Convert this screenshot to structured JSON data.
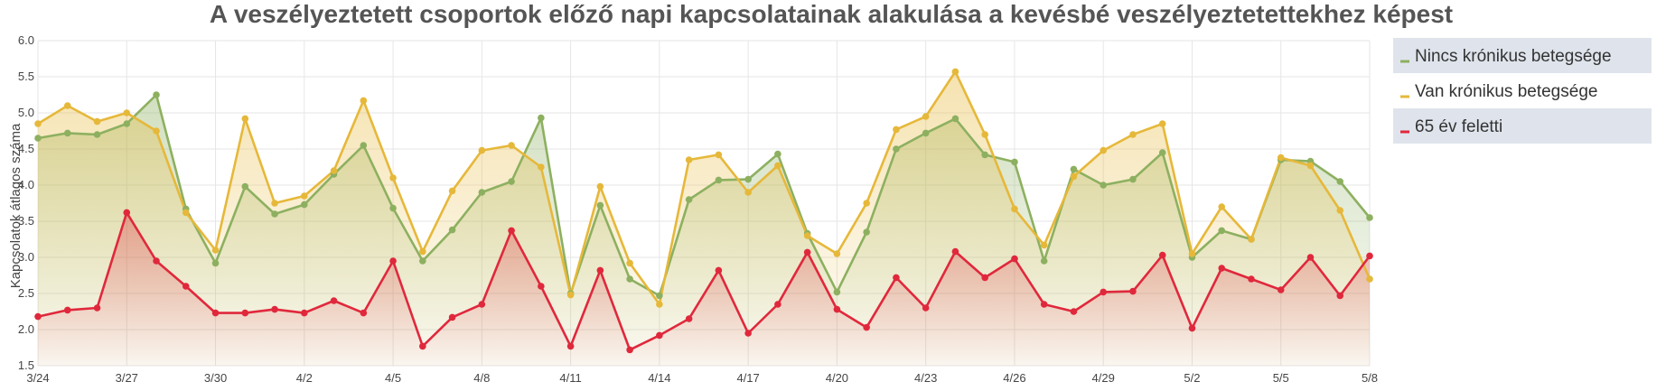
{
  "chart_data": {
    "type": "area",
    "title": "A veszélyeztetett csoportok előző napi kapcsolatainak alakulása a kevésbé veszélyeztetettekhez képest",
    "xlabel": "",
    "ylabel": "Kapcsolatok átlagos száma",
    "ylim": [
      1.5,
      6.0
    ],
    "y_ticks": [
      "1.5",
      "2.0",
      "2.5",
      "3.0",
      "3.5",
      "4.0",
      "4.5",
      "5.0",
      "5.5",
      "6.0"
    ],
    "x_tick_labels": [
      "3/24",
      "3/27",
      "3/30",
      "4/2",
      "4/5",
      "4/8",
      "4/11",
      "4/14",
      "4/17",
      "4/20",
      "4/23",
      "4/26",
      "4/29",
      "5/2",
      "5/5",
      "5/8"
    ],
    "x_tick_step": 3,
    "x": [
      "3/24",
      "3/25",
      "3/26",
      "3/27",
      "3/28",
      "3/29",
      "3/30",
      "3/31",
      "4/1",
      "4/2",
      "4/3",
      "4/4",
      "4/5",
      "4/6",
      "4/7",
      "4/8",
      "4/9",
      "4/10",
      "4/11",
      "4/12",
      "4/13",
      "4/14",
      "4/15",
      "4/16",
      "4/17",
      "4/18",
      "4/19",
      "4/20",
      "4/21",
      "4/22",
      "4/23",
      "4/24",
      "4/25",
      "4/26",
      "4/27",
      "4/28",
      "4/29",
      "4/30",
      "5/1",
      "5/2",
      "5/3",
      "5/4",
      "5/5",
      "5/6",
      "5/7",
      "5/8"
    ],
    "grid": true,
    "legend_position": "right",
    "series": [
      {
        "name": "Nincs krónikus betegsége",
        "color": "#8db060",
        "values": [
          4.65,
          4.72,
          4.7,
          4.85,
          5.25,
          3.67,
          2.92,
          3.98,
          3.6,
          3.73,
          4.15,
          4.55,
          3.68,
          2.95,
          3.38,
          3.9,
          4.05,
          4.93,
          2.5,
          3.72,
          2.7,
          2.47,
          3.8,
          4.07,
          4.08,
          4.43,
          3.33,
          2.52,
          3.35,
          4.5,
          4.72,
          4.92,
          4.42,
          4.32,
          2.95,
          4.22,
          4.0,
          4.08,
          4.45,
          3.0,
          3.37,
          3.25,
          4.35,
          4.33,
          4.05,
          3.55
        ]
      },
      {
        "name": "Van krónikus betegsége",
        "color": "#e6b83a",
        "values": [
          4.85,
          5.1,
          4.88,
          5.0,
          4.75,
          3.62,
          3.1,
          4.92,
          3.75,
          3.85,
          4.2,
          5.17,
          4.1,
          3.08,
          3.92,
          4.48,
          4.55,
          4.25,
          2.48,
          3.98,
          2.92,
          2.35,
          4.35,
          4.42,
          3.9,
          4.27,
          3.3,
          3.05,
          3.75,
          4.77,
          4.95,
          5.57,
          4.7,
          3.67,
          3.17,
          4.12,
          4.48,
          4.7,
          4.85,
          3.05,
          3.7,
          3.25,
          4.38,
          4.27,
          3.65,
          2.7
        ]
      },
      {
        "name": "65 év feletti",
        "color": "#e0283c",
        "values": [
          2.18,
          2.27,
          2.3,
          3.62,
          2.95,
          2.6,
          2.23,
          2.23,
          2.28,
          2.23,
          2.4,
          2.23,
          2.95,
          1.77,
          2.17,
          2.35,
          3.37,
          2.6,
          1.77,
          2.82,
          1.72,
          1.92,
          2.15,
          2.82,
          1.95,
          2.35,
          3.07,
          2.28,
          2.03,
          2.72,
          2.3,
          3.08,
          2.72,
          2.98,
          2.35,
          2.25,
          2.52,
          2.53,
          3.03,
          2.02,
          2.85,
          2.7,
          2.55,
          3.0,
          2.47,
          3.02
        ]
      }
    ]
  }
}
